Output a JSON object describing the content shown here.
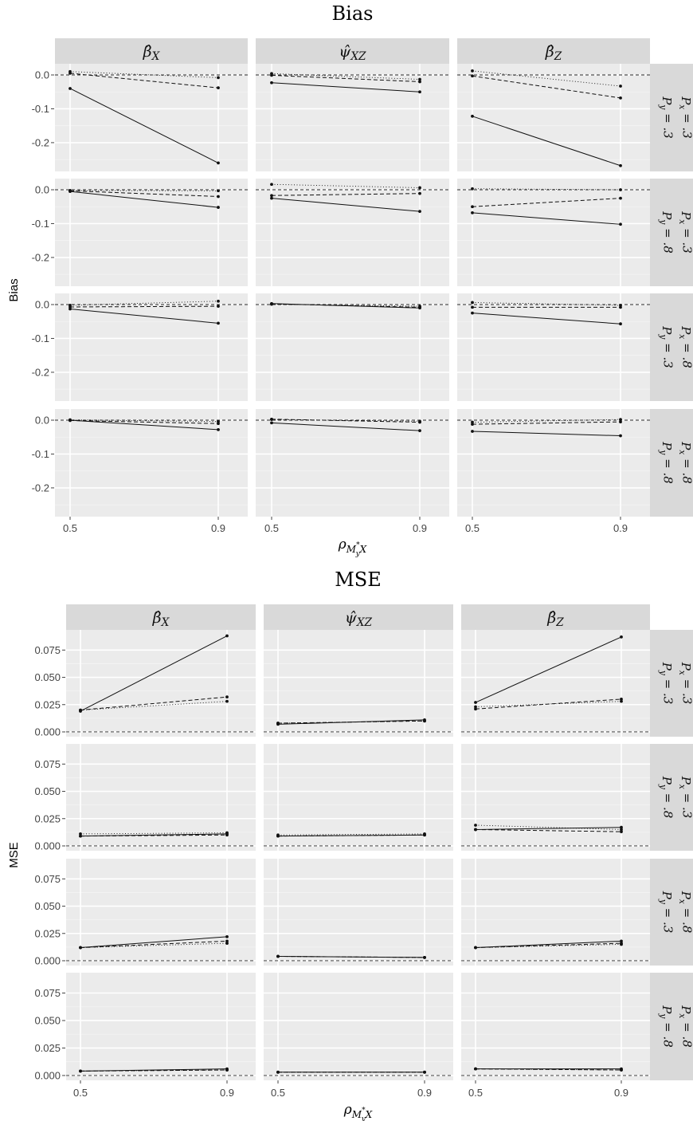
{
  "chart_data": [
    {
      "type": "line",
      "title": "Bias",
      "ylabel": "Bias",
      "xlabel": "ρ_{M*_y X}",
      "x": [
        0.5,
        0.9
      ],
      "x_ticks": [
        "0.5",
        "0.9"
      ],
      "ylim": [
        -0.285,
        0.033
      ],
      "y_ticks": [
        0.0,
        -0.1,
        -0.2
      ],
      "y_tick_labels": [
        "0.0",
        "-0.1",
        "-0.2"
      ],
      "reference_line": 0,
      "columns": [
        "β̂_X",
        "ψ̂_XZ",
        "β̂_Z"
      ],
      "rows": [
        {
          "px": "P_x = .3",
          "py": "P_y = .3"
        },
        {
          "px": "P_x = .3",
          "py": "P_y = .8"
        },
        {
          "px": "P_x = .8",
          "py": "P_y = .3"
        },
        {
          "px": "P_x = .8",
          "py": "P_y = .8"
        }
      ],
      "series_styles": [
        "solid",
        "dashed",
        "dotted"
      ],
      "panels": [
        [
          {
            "solid": [
              -0.04,
              -0.26
            ],
            "dashed": [
              0.005,
              -0.038
            ],
            "dotted": [
              0.01,
              -0.008
            ]
          },
          {
            "solid": [
              -0.023,
              -0.05
            ],
            "dashed": [
              -0.001,
              -0.02
            ],
            "dotted": [
              0.004,
              -0.013
            ]
          },
          {
            "solid": [
              -0.122,
              -0.268
            ],
            "dashed": [
              -0.003,
              -0.068
            ],
            "dotted": [
              0.012,
              -0.033
            ]
          }
        ],
        [
          {
            "solid": [
              -0.005,
              -0.052
            ],
            "dashed": [
              -0.003,
              -0.02
            ],
            "dotted": [
              -0.002,
              -0.003
            ]
          },
          {
            "solid": [
              -0.025,
              -0.064
            ],
            "dashed": [
              -0.017,
              -0.011
            ],
            "dotted": [
              0.016,
              0.006
            ]
          },
          {
            "solid": [
              -0.068,
              -0.102
            ],
            "dashed": [
              -0.05,
              -0.025
            ],
            "dotted": [
              0.003,
              0.0
            ]
          }
        ],
        [
          {
            "solid": [
              -0.013,
              -0.055
            ],
            "dashed": [
              -0.007,
              -0.005
            ],
            "dotted": [
              -0.002,
              0.01
            ]
          },
          {
            "solid": [
              0.003,
              -0.01
            ],
            "dashed": [
              0.002,
              -0.008
            ],
            "dotted": [
              0.001,
              -0.005
            ]
          },
          {
            "solid": [
              -0.025,
              -0.057
            ],
            "dashed": [
              -0.008,
              -0.008
            ],
            "dotted": [
              0.006,
              -0.002
            ]
          }
        ],
        [
          {
            "solid": [
              0.0,
              -0.028
            ],
            "dashed": [
              -0.001,
              -0.01
            ],
            "dotted": [
              0.001,
              -0.004
            ]
          },
          {
            "solid": [
              -0.008,
              -0.031
            ],
            "dashed": [
              0.003,
              -0.006
            ],
            "dotted": [
              0.002,
              -0.003
            ]
          },
          {
            "solid": [
              -0.033,
              -0.046
            ],
            "dashed": [
              -0.012,
              -0.005
            ],
            "dotted": [
              -0.006,
              0.002
            ]
          }
        ]
      ]
    },
    {
      "type": "line",
      "title": "MSE",
      "ylabel": "MSE",
      "xlabel": "ρ_{M*_y X}",
      "x": [
        0.5,
        0.9
      ],
      "x_ticks": [
        "0.5",
        "0.9"
      ],
      "ylim": [
        -0.0044,
        0.0935
      ],
      "y_ticks": [
        0.075,
        0.05,
        0.025,
        0.0
      ],
      "y_tick_labels": [
        "0.075",
        "0.050",
        "0.025",
        "0.000"
      ],
      "reference_line": 0,
      "columns": [
        "β̂_X",
        "ψ̂_XZ",
        "β̂_Z"
      ],
      "rows": [
        {
          "px": "P_x = .3",
          "py": "P_y = .3"
        },
        {
          "px": "P_x = .3",
          "py": "P_y = .8"
        },
        {
          "px": "P_x = .8",
          "py": "P_y = .3"
        },
        {
          "px": "P_x = .8",
          "py": "P_y = .8"
        }
      ],
      "series_styles": [
        "solid",
        "dashed",
        "dotted"
      ],
      "panels": [
        [
          {
            "solid": [
              0.019,
              0.088
            ],
            "dashed": [
              0.02,
              0.032
            ],
            "dotted": [
              0.02,
              0.028
            ]
          },
          {
            "solid": [
              0.007,
              0.011
            ],
            "dashed": [
              0.008,
              0.01
            ],
            "dotted": [
              0.008,
              0.01
            ]
          },
          {
            "solid": [
              0.027,
              0.087
            ],
            "dashed": [
              0.021,
              0.03
            ],
            "dotted": [
              0.023,
              0.028
            ]
          }
        ],
        [
          {
            "solid": [
              0.009,
              0.011
            ],
            "dashed": [
              0.009,
              0.01
            ],
            "dotted": [
              0.011,
              0.012
            ]
          },
          {
            "solid": [
              0.009,
              0.01
            ],
            "dashed": [
              0.009,
              0.01
            ],
            "dotted": [
              0.01,
              0.011
            ]
          },
          {
            "solid": [
              0.015,
              0.017
            ],
            "dashed": [
              0.015,
              0.013
            ],
            "dotted": [
              0.019,
              0.015
            ]
          }
        ],
        [
          {
            "solid": [
              0.012,
              0.022
            ],
            "dashed": [
              0.012,
              0.018
            ],
            "dotted": [
              0.012,
              0.016
            ]
          },
          {
            "solid": [
              0.004,
              0.003
            ],
            "dashed": [
              0.004,
              0.003
            ],
            "dotted": [
              0.004,
              0.003
            ]
          },
          {
            "solid": [
              0.012,
              0.018
            ],
            "dashed": [
              0.012,
              0.016
            ],
            "dotted": [
              0.012,
              0.015
            ]
          }
        ],
        [
          {
            "solid": [
              0.004,
              0.006
            ],
            "dashed": [
              0.004,
              0.005
            ],
            "dotted": [
              0.004,
              0.005
            ]
          },
          {
            "solid": [
              0.003,
              0.003
            ],
            "dashed": [
              0.003,
              0.003
            ],
            "dotted": [
              0.003,
              0.003
            ]
          },
          {
            "solid": [
              0.006,
              0.006
            ],
            "dashed": [
              0.006,
              0.005
            ],
            "dotted": [
              0.006,
              0.005
            ]
          }
        ]
      ]
    }
  ]
}
